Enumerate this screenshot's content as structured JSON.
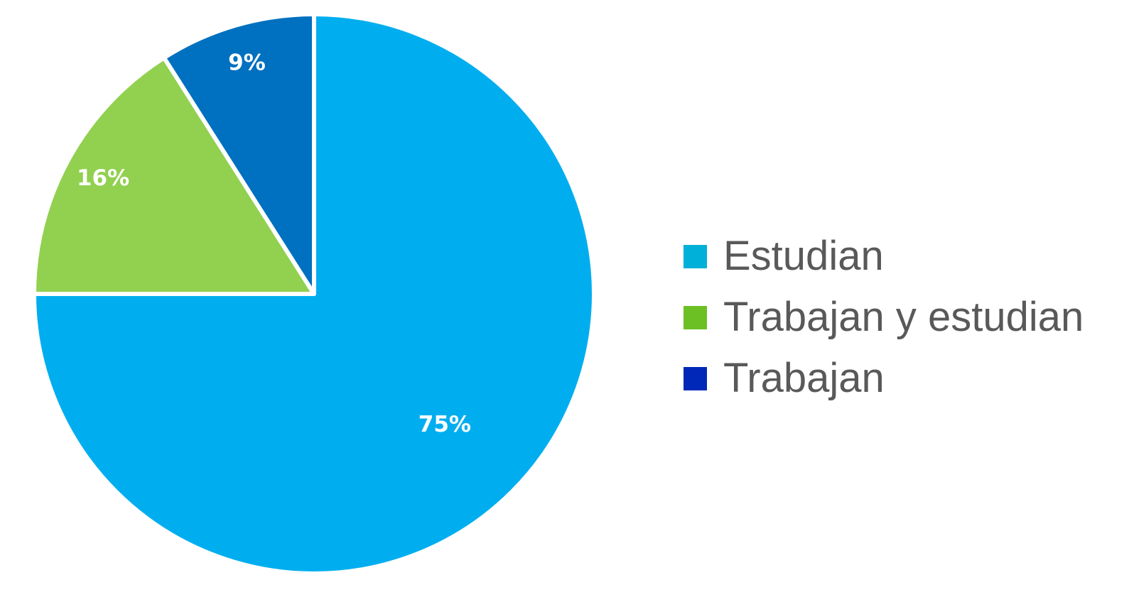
{
  "chart_data": {
    "type": "pie",
    "title": "",
    "slices": [
      {
        "label": "Estudian",
        "value": 75,
        "value_label": "75%",
        "slice_color": "#00AEEF",
        "legend_color": "#00B0D8"
      },
      {
        "label": "Trabajan y estudian",
        "value": 16,
        "value_label": "16%",
        "slice_color": "#92D050",
        "legend_color": "#6CC024"
      },
      {
        "label": "Trabajan",
        "value": 9,
        "value_label": "9%",
        "slice_color": "#0070C0",
        "legend_color": "#0028B8"
      }
    ],
    "start_angle_deg": 0,
    "direction": "clockwise",
    "legend_position": "right",
    "data_labels": "inside"
  }
}
